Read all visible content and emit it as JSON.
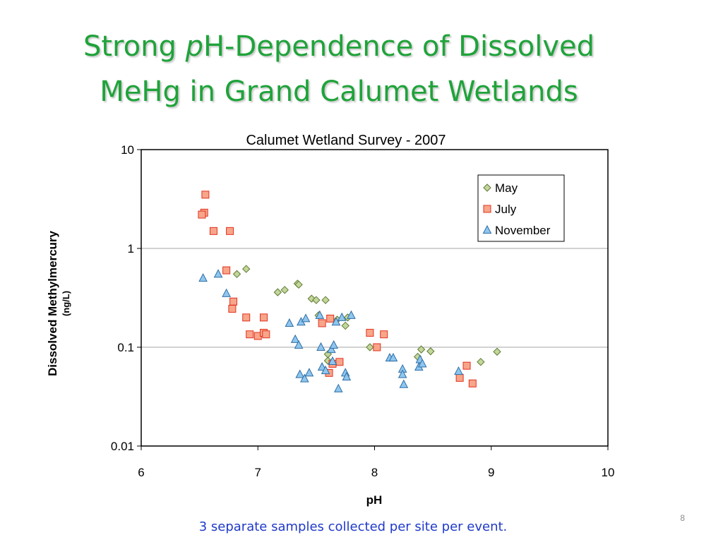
{
  "slide": {
    "title_line1_a": "Strong ",
    "title_line1_b": "p",
    "title_line1_c": "H-Dependence of Dissolved",
    "title_line2": "MeHg in Grand Calumet Wetlands",
    "note": "3 separate samples collected per site per event.",
    "page_number": "8"
  },
  "chart_data": {
    "type": "scatter",
    "title": "Calumet Wetland Survey - 2007",
    "xlabel": "pH",
    "ylabel": "Dissolved Methylmercury",
    "ylabel_unit": "(ng/L)",
    "xlim": [
      6,
      10
    ],
    "ylim": [
      0.01,
      10
    ],
    "yscale": "log",
    "x_ticks": [
      "6",
      "7",
      "8",
      "9",
      "10"
    ],
    "y_ticks": [
      "0.01",
      "0.1",
      "1",
      "10"
    ],
    "grid": "horizontal",
    "legend": "top-right",
    "series": [
      {
        "name": "May",
        "marker": "diamond",
        "fill": "#c3d69b",
        "stroke": "#5e7a33",
        "points": [
          [
            6.82,
            0.55
          ],
          [
            6.9,
            0.62
          ],
          [
            7.17,
            0.36
          ],
          [
            7.23,
            0.38
          ],
          [
            7.34,
            0.44
          ],
          [
            7.35,
            0.43
          ],
          [
            7.46,
            0.31
          ],
          [
            7.5,
            0.3
          ],
          [
            7.58,
            0.3
          ],
          [
            7.52,
            0.21
          ],
          [
            7.6,
            0.085
          ],
          [
            7.6,
            0.073
          ],
          [
            7.68,
            0.19
          ],
          [
            7.75,
            0.165
          ],
          [
            7.77,
            0.2
          ],
          [
            7.96,
            0.1
          ],
          [
            8.37,
            0.08
          ],
          [
            8.4,
            0.095
          ],
          [
            8.48,
            0.091
          ],
          [
            8.91,
            0.071
          ],
          [
            9.05,
            0.09
          ]
        ]
      },
      {
        "name": "July",
        "marker": "square",
        "fill": "#f8a58a",
        "stroke": "#e0321e",
        "points": [
          [
            6.55,
            3.5
          ],
          [
            6.54,
            2.3
          ],
          [
            6.52,
            2.2
          ],
          [
            6.62,
            1.5
          ],
          [
            6.76,
            1.5
          ],
          [
            6.73,
            0.6
          ],
          [
            6.79,
            0.29
          ],
          [
            6.78,
            0.245
          ],
          [
            6.9,
            0.2
          ],
          [
            7.05,
            0.2
          ],
          [
            6.93,
            0.135
          ],
          [
            7.0,
            0.13
          ],
          [
            7.05,
            0.14
          ],
          [
            7.07,
            0.135
          ],
          [
            7.55,
            0.175
          ],
          [
            7.62,
            0.195
          ],
          [
            7.61,
            0.055
          ],
          [
            7.64,
            0.068
          ],
          [
            7.7,
            0.071
          ],
          [
            7.96,
            0.14
          ],
          [
            8.08,
            0.135
          ],
          [
            8.02,
            0.1
          ],
          [
            8.73,
            0.049
          ],
          [
            8.79,
            0.065
          ],
          [
            8.84,
            0.043
          ]
        ]
      },
      {
        "name": "November",
        "marker": "triangle",
        "fill": "#8fc6ee",
        "stroke": "#2e6ea6",
        "points": [
          [
            6.53,
            0.5
          ],
          [
            6.66,
            0.55
          ],
          [
            6.73,
            0.35
          ],
          [
            7.27,
            0.175
          ],
          [
            7.32,
            0.12
          ],
          [
            7.35,
            0.105
          ],
          [
            7.37,
            0.18
          ],
          [
            7.41,
            0.195
          ],
          [
            7.53,
            0.21
          ],
          [
            7.54,
            0.1
          ],
          [
            7.63,
            0.095
          ],
          [
            7.65,
            0.105
          ],
          [
            7.67,
            0.18
          ],
          [
            7.72,
            0.2
          ],
          [
            7.8,
            0.21
          ],
          [
            7.36,
            0.053
          ],
          [
            7.4,
            0.048
          ],
          [
            7.44,
            0.055
          ],
          [
            7.55,
            0.063
          ],
          [
            7.58,
            0.058
          ],
          [
            7.64,
            0.072
          ],
          [
            7.69,
            0.038
          ],
          [
            7.75,
            0.055
          ],
          [
            7.76,
            0.05
          ],
          [
            8.13,
            0.078
          ],
          [
            8.16,
            0.078
          ],
          [
            8.24,
            0.06
          ],
          [
            8.24,
            0.053
          ],
          [
            8.25,
            0.042
          ],
          [
            8.38,
            0.063
          ],
          [
            8.39,
            0.075
          ],
          [
            8.41,
            0.068
          ],
          [
            8.72,
            0.057
          ]
        ]
      }
    ]
  }
}
